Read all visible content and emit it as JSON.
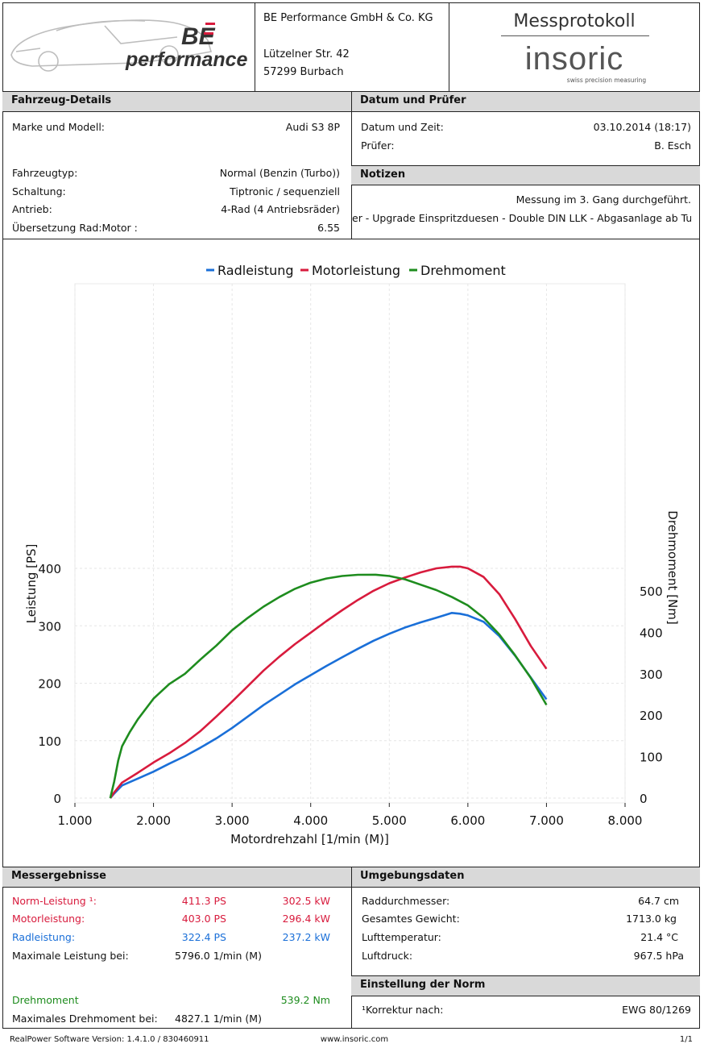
{
  "header": {
    "company_name": "BE Performance GmbH & Co. KG",
    "street": "Lützelner Str. 42",
    "city": "57299 Burbach",
    "logo_text": "performance",
    "logo_mark": "BE",
    "protocol_title": "Messprotokoll",
    "brand_name": "insoric",
    "brand_tagline": "swiss precision measuring"
  },
  "vehicle": {
    "section_title": "Fahrzeug-Details",
    "rows": [
      {
        "label": "Marke und Modell:",
        "value": "Audi S3 8P"
      },
      {
        "label": "Fahrzeugtyp:",
        "value": "Normal (Benzin (Turbo))"
      },
      {
        "label": "Schaltung:",
        "value": "Tiptronic / sequenziell"
      },
      {
        "label": "Antrieb:",
        "value": "4-Rad (4 Antriebsräder)"
      },
      {
        "label": "Übersetzung Rad:Motor :",
        "value": "6.55"
      }
    ]
  },
  "date_tester": {
    "section_title": "Datum und Prüfer",
    "rows": [
      {
        "label": "Datum und Zeit:",
        "value": "03.10.2014 (18:17)"
      },
      {
        "label": "Prüfer:",
        "value": "B. Esch"
      }
    ]
  },
  "notes": {
    "section_title": "Notizen",
    "line1": "Messung im 3. Gang durchgeführt.",
    "line2": "er - Upgrade Einspritzduesen - Double DIN LLK - Abgasanlage ab Turbo"
  },
  "chart_data": {
    "type": "line",
    "xlabel": "Motordrehzahl [1/min (M)]",
    "ylabel": "Leistung [PS]",
    "y2label": "Drehmoment [Nm]",
    "xlim": [
      1000,
      8000
    ],
    "ylim": [
      0,
      430
    ],
    "y2lim": [
      0,
      560
    ],
    "x_ticks": [
      1000,
      2000,
      3000,
      4000,
      5000,
      6000,
      7000,
      8000
    ],
    "x_tick_labels": [
      "1.000",
      "2.000",
      "3.000",
      "4.000",
      "5.000",
      "6.000",
      "7.000",
      "8.000"
    ],
    "y_ticks": [
      0,
      100,
      200,
      300,
      400
    ],
    "y_tick_labels": [
      "0",
      "100",
      "200",
      "300",
      "400"
    ],
    "y2_ticks": [
      0,
      100,
      200,
      300,
      400,
      500
    ],
    "y2_tick_labels": [
      "0",
      "100",
      "200",
      "300",
      "400",
      "500"
    ],
    "grid": true,
    "legend_position": "top-center",
    "series": [
      {
        "name": "Radleistung",
        "color": "#1a6fd8",
        "axis": "left",
        "x": [
          1450,
          1500,
          1600,
          1800,
          2000,
          2200,
          2400,
          2600,
          2800,
          3000,
          3200,
          3400,
          3600,
          3800,
          4000,
          4200,
          4400,
          4600,
          4800,
          5000,
          5200,
          5400,
          5600,
          5796,
          5900,
          6000,
          6200,
          6400,
          6600,
          6800,
          7000
        ],
        "y": [
          0,
          8,
          22,
          34,
          46,
          60,
          73,
          88,
          104,
          122,
          142,
          162,
          180,
          198,
          214,
          230,
          245,
          260,
          274,
          286,
          297,
          306,
          314,
          322.4,
          321,
          318,
          307,
          282,
          248,
          210,
          172
        ]
      },
      {
        "name": "Motorleistung",
        "color": "#d81b3d",
        "axis": "left",
        "x": [
          1450,
          1500,
          1600,
          1800,
          2000,
          2200,
          2400,
          2600,
          2800,
          3000,
          3200,
          3400,
          3600,
          3800,
          4000,
          4200,
          4400,
          4600,
          4800,
          5000,
          5200,
          5400,
          5600,
          5796,
          5900,
          6000,
          6200,
          6400,
          6600,
          6800,
          7000
        ],
        "y": [
          0,
          10,
          27,
          44,
          62,
          78,
          96,
          117,
          142,
          168,
          195,
          222,
          246,
          268,
          288,
          308,
          327,
          345,
          361,
          374,
          384,
          393,
          400,
          403.0,
          403,
          400,
          385,
          355,
          312,
          265,
          225
        ]
      },
      {
        "name": "Drehmoment",
        "color": "#1e8c1e",
        "axis": "right",
        "x": [
          1450,
          1500,
          1550,
          1600,
          1700,
          1800,
          2000,
          2200,
          2400,
          2600,
          2800,
          3000,
          3200,
          3400,
          3600,
          3800,
          4000,
          4200,
          4400,
          4600,
          4827,
          5000,
          5200,
          5400,
          5600,
          5800,
          6000,
          6200,
          6400,
          6600,
          6800,
          7000
        ],
        "y": [
          0,
          40,
          90,
          125,
          160,
          190,
          240,
          275,
          300,
          335,
          368,
          405,
          435,
          462,
          485,
          505,
          520,
          530,
          536,
          539,
          539.2,
          536,
          528,
          515,
          502,
          485,
          465,
          435,
          395,
          345,
          290,
          225
        ]
      }
    ]
  },
  "results": {
    "section_title": "Messergebnisse",
    "rows": [
      {
        "label": "Norm-Leistung ¹:",
        "ps": "411.3 PS",
        "kw": "302.5 kW",
        "color": "#d81b3d"
      },
      {
        "label": "Motorleistung:",
        "ps": "403.0 PS",
        "kw": "296.4 kW",
        "color": "#d81b3d"
      },
      {
        "label": "Radleistung:",
        "ps": "322.4 PS",
        "kw": "237.2 kW",
        "color": "#1a6fd8"
      }
    ],
    "max_power_label": "Maximale Leistung bei:",
    "max_power_value": "5796.0 1/min (M)",
    "torque_label": "Drehmoment",
    "torque_value": "539.2 Nm",
    "max_torque_label": "Maximales Drehmoment bei:",
    "max_torque_value": "4827.1 1/min (M)"
  },
  "environment": {
    "section_title": "Umgebungsdaten",
    "rows": [
      {
        "label": "Raddurchmesser:",
        "value": "64.7 cm"
      },
      {
        "label": "Gesamtes Gewicht:",
        "value": "1713.0 kg"
      },
      {
        "label": "Lufttemperatur:",
        "value": "21.4 °C"
      },
      {
        "label": "Luftdruck:",
        "value": "967.5 hPa"
      }
    ]
  },
  "norm": {
    "section_title": "Einstellung der Norm",
    "label": "¹Korrektur nach:",
    "value": "EWG 80/1269"
  },
  "footer": {
    "software": "RealPower Software Version: 1.4.1.0 / 830460911",
    "website": "www.insoric.com",
    "page": "1/1"
  }
}
